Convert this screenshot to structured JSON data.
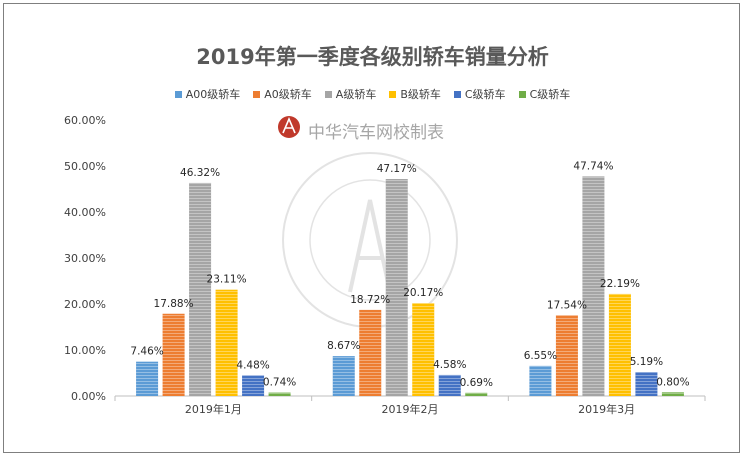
{
  "chart_data": {
    "type": "bar",
    "title": "2019年第一季度各级别轿车销量分析",
    "categories": [
      "2019年1月",
      "2019年2月",
      "2019年3月"
    ],
    "series": [
      {
        "name": "A00级轿车",
        "color": "#5b9bd5",
        "values": [
          7.46,
          8.67,
          6.55
        ],
        "labels": [
          "7.46%",
          "8.67%",
          "6.55%"
        ]
      },
      {
        "name": "A0级轿车",
        "color": "#ed7d31",
        "values": [
          17.88,
          18.72,
          17.54
        ],
        "labels": [
          "17.88%",
          "18.72%",
          "17.54%"
        ]
      },
      {
        "name": "A级轿车",
        "color": "#a5a5a5",
        "values": [
          46.32,
          47.17,
          47.74
        ],
        "labels": [
          "46.32%",
          "47.17%",
          "47.74%"
        ]
      },
      {
        "name": "B级轿车",
        "color": "#ffc000",
        "values": [
          23.11,
          20.17,
          22.19
        ],
        "labels": [
          "23.11%",
          "20.17%",
          "22.19%"
        ]
      },
      {
        "name": "C级轿车",
        "color": "#4472c4",
        "values": [
          4.48,
          4.58,
          5.19
        ],
        "labels": [
          "4.48%",
          "4.58%",
          "5.19%"
        ]
      },
      {
        "name": "C级轿车",
        "color": "#70ad47",
        "values": [
          0.74,
          0.69,
          0.8
        ],
        "labels": [
          "0.74%",
          "0.69%",
          "0.80%"
        ]
      }
    ],
    "ylim": [
      0,
      60
    ],
    "yticks": [
      "0.00%",
      "10.00%",
      "20.00%",
      "30.00%",
      "40.00%",
      "50.00%",
      "60.00%"
    ],
    "legend_position": "top",
    "grid": false
  },
  "watermark": {
    "text": "中华汽车网校制表",
    "seal_text": "CHINA AUTO DISTANCE EDUCATION CENTER"
  }
}
